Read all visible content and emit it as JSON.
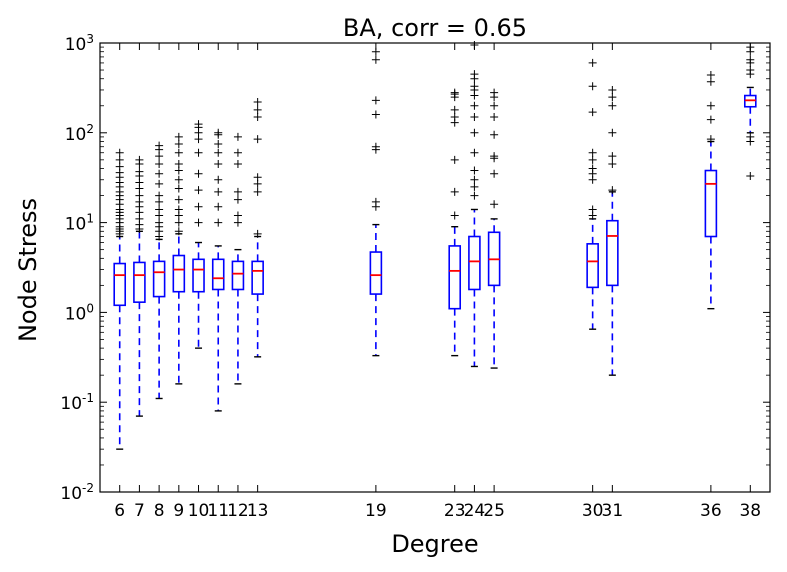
{
  "chart_data": {
    "type": "box",
    "title": "BA, corr = 0.65",
    "xlabel": "Degree",
    "ylabel": "Node Stress",
    "yscale": "log",
    "ylim": [
      0.01,
      1000
    ],
    "ytick_labels": [
      {
        "base": "10",
        "exp": "-2"
      },
      {
        "base": "10",
        "exp": "-1"
      },
      {
        "base": "10",
        "exp": "0"
      },
      {
        "base": "10",
        "exp": "1"
      },
      {
        "base": "10",
        "exp": "2"
      },
      {
        "base": "10",
        "exp": "3"
      }
    ],
    "grid": false,
    "colors": {
      "box": "#0000ff",
      "median": "#ff0000",
      "flier": "#000000",
      "whisker": "#0000ff"
    },
    "boxes": [
      {
        "degree": "6",
        "whislo": 0.03,
        "q1": 1.2,
        "med": 2.6,
        "q3": 3.5,
        "whishi": 7,
        "fliers": [
          7.5,
          8,
          8.5,
          9,
          10,
          11,
          12,
          13,
          14,
          16,
          18,
          20,
          22,
          25,
          28,
          32,
          36,
          42,
          50,
          60
        ]
      },
      {
        "degree": "7",
        "whislo": 0.07,
        "q1": 1.3,
        "med": 2.6,
        "q3": 3.6,
        "whishi": 8,
        "fliers": [
          8.5,
          9.5,
          11,
          13,
          15,
          17,
          20,
          24,
          28,
          33,
          37,
          45,
          50
        ]
      },
      {
        "degree": "8",
        "whislo": 0.11,
        "q1": 1.5,
        "med": 2.8,
        "q3": 3.7,
        "whishi": 6.5,
        "fliers": [
          7,
          8,
          9,
          10,
          12,
          14,
          17,
          20,
          27,
          35,
          45,
          55,
          65,
          72
        ]
      },
      {
        "degree": "9",
        "whislo": 0.16,
        "q1": 1.7,
        "med": 3.0,
        "q3": 4.3,
        "whishi": 7.5,
        "fliers": [
          8,
          10,
          12,
          14,
          18,
          24,
          30,
          38,
          45,
          60,
          75,
          90
        ]
      },
      {
        "degree": "10",
        "whislo": 0.4,
        "q1": 1.7,
        "med": 3.0,
        "q3": 3.9,
        "whishi": 6,
        "fliers": [
          10,
          15,
          23,
          35,
          60,
          85,
          100,
          115,
          125
        ]
      },
      {
        "degree": "11",
        "whislo": 0.08,
        "q1": 1.8,
        "med": 2.4,
        "q3": 3.9,
        "whishi": 5.5,
        "fliers": [
          10,
          15,
          22,
          30,
          45,
          60,
          75,
          95,
          100
        ]
      },
      {
        "degree": "12",
        "whislo": 0.16,
        "q1": 1.8,
        "med": 2.7,
        "q3": 3.7,
        "whishi": 5,
        "fliers": [
          10,
          12,
          18,
          22,
          45,
          60,
          90
        ]
      },
      {
        "degree": "13",
        "whislo": 0.32,
        "q1": 1.6,
        "med": 2.9,
        "q3": 3.7,
        "whishi": 7,
        "fliers": [
          7.5,
          22,
          27,
          32,
          85,
          150,
          180,
          220
        ]
      },
      {
        "degree": "19",
        "whislo": 0.33,
        "q1": 1.6,
        "med": 2.6,
        "q3": 4.7,
        "whishi": 9.5,
        "fliers": [
          15,
          17,
          65,
          70,
          160,
          230,
          650,
          800
        ]
      },
      {
        "degree": "23",
        "whislo": 0.33,
        "q1": 1.1,
        "med": 2.9,
        "q3": 5.5,
        "whishi": 9,
        "fliers": [
          12,
          22,
          50,
          130,
          150,
          180,
          250,
          270,
          280
        ]
      },
      {
        "degree": "24",
        "whislo": 0.25,
        "q1": 1.8,
        "med": 3.7,
        "q3": 7,
        "whishi": 14,
        "fliers": [
          20,
          25,
          30,
          38,
          60,
          100,
          150,
          200,
          260,
          300,
          330,
          400,
          450,
          950
        ]
      },
      {
        "degree": "25",
        "whislo": 0.24,
        "q1": 2.0,
        "med": 3.9,
        "q3": 7.8,
        "whishi": 11,
        "fliers": [
          16,
          35,
          52,
          55,
          95,
          150,
          200,
          250,
          280
        ]
      },
      {
        "degree": "30",
        "whislo": 0.65,
        "q1": 1.9,
        "med": 3.7,
        "q3": 5.8,
        "whishi": 11,
        "fliers": [
          12,
          14,
          30,
          35,
          40,
          50,
          60,
          170,
          330,
          600
        ]
      },
      {
        "degree": "31",
        "whislo": 0.2,
        "q1": 2.0,
        "med": 7.1,
        "q3": 10.5,
        "whishi": 22,
        "fliers": [
          23,
          45,
          55,
          100,
          200,
          250,
          300
        ]
      },
      {
        "degree": "36",
        "whislo": 1.1,
        "q1": 7,
        "med": 27,
        "q3": 38,
        "whishi": 80,
        "fliers": [
          85,
          140,
          200,
          370,
          440
        ]
      },
      {
        "degree": "38",
        "whislo": 100,
        "q1": 195,
        "med": 230,
        "q3": 260,
        "whishi": 320,
        "fliers": [
          33,
          80,
          90,
          450,
          500,
          600,
          650,
          800,
          900
        ]
      }
    ]
  }
}
